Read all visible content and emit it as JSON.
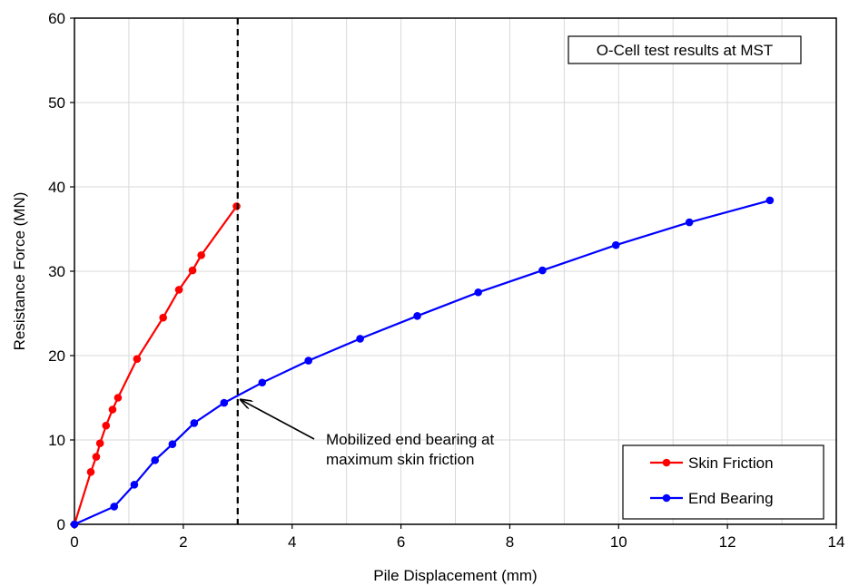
{
  "chart_data": {
    "type": "line",
    "title": "O-Cell test results at MST",
    "xlabel": "Pile Displacement (mm)",
    "ylabel": "Resistance Force (MN)",
    "xlim": [
      0,
      14
    ],
    "ylim": [
      0,
      60
    ],
    "xticks": [
      0,
      2,
      4,
      6,
      8,
      10,
      12,
      14
    ],
    "yticks": [
      0,
      10,
      20,
      30,
      40,
      50,
      60
    ],
    "grid": true,
    "legend_position": "bottom-right",
    "series": [
      {
        "name": "Skin Friction",
        "color": "#ff0000",
        "points": [
          [
            0,
            0
          ],
          [
            0.3,
            6.2
          ],
          [
            0.4,
            8.0
          ],
          [
            0.47,
            9.6
          ],
          [
            0.58,
            11.7
          ],
          [
            0.7,
            13.6
          ],
          [
            0.8,
            15.0
          ],
          [
            1.15,
            19.6
          ],
          [
            1.63,
            24.5
          ],
          [
            1.92,
            27.8
          ],
          [
            2.17,
            30.1
          ],
          [
            2.33,
            31.9
          ],
          [
            2.98,
            37.7
          ]
        ]
      },
      {
        "name": "End Bearing",
        "color": "#0000ff",
        "points": [
          [
            0,
            0
          ],
          [
            0.73,
            2.1
          ],
          [
            1.1,
            4.7
          ],
          [
            1.48,
            7.6
          ],
          [
            1.8,
            9.5
          ],
          [
            2.2,
            12.0
          ],
          [
            2.75,
            14.4
          ],
          [
            3.45,
            16.8
          ],
          [
            4.3,
            19.4
          ],
          [
            5.25,
            22.0
          ],
          [
            6.3,
            24.7
          ],
          [
            7.42,
            27.5
          ],
          [
            8.6,
            30.1
          ],
          [
            9.95,
            33.1
          ],
          [
            11.3,
            35.8
          ],
          [
            12.78,
            38.4
          ]
        ]
      }
    ],
    "reference_line": {
      "x": 3.0,
      "style": "dashed"
    },
    "annotation": {
      "lines": [
        "Mobilized end bearing at",
        "maximum skin friction"
      ],
      "target": [
        3.0,
        15.0
      ]
    }
  }
}
